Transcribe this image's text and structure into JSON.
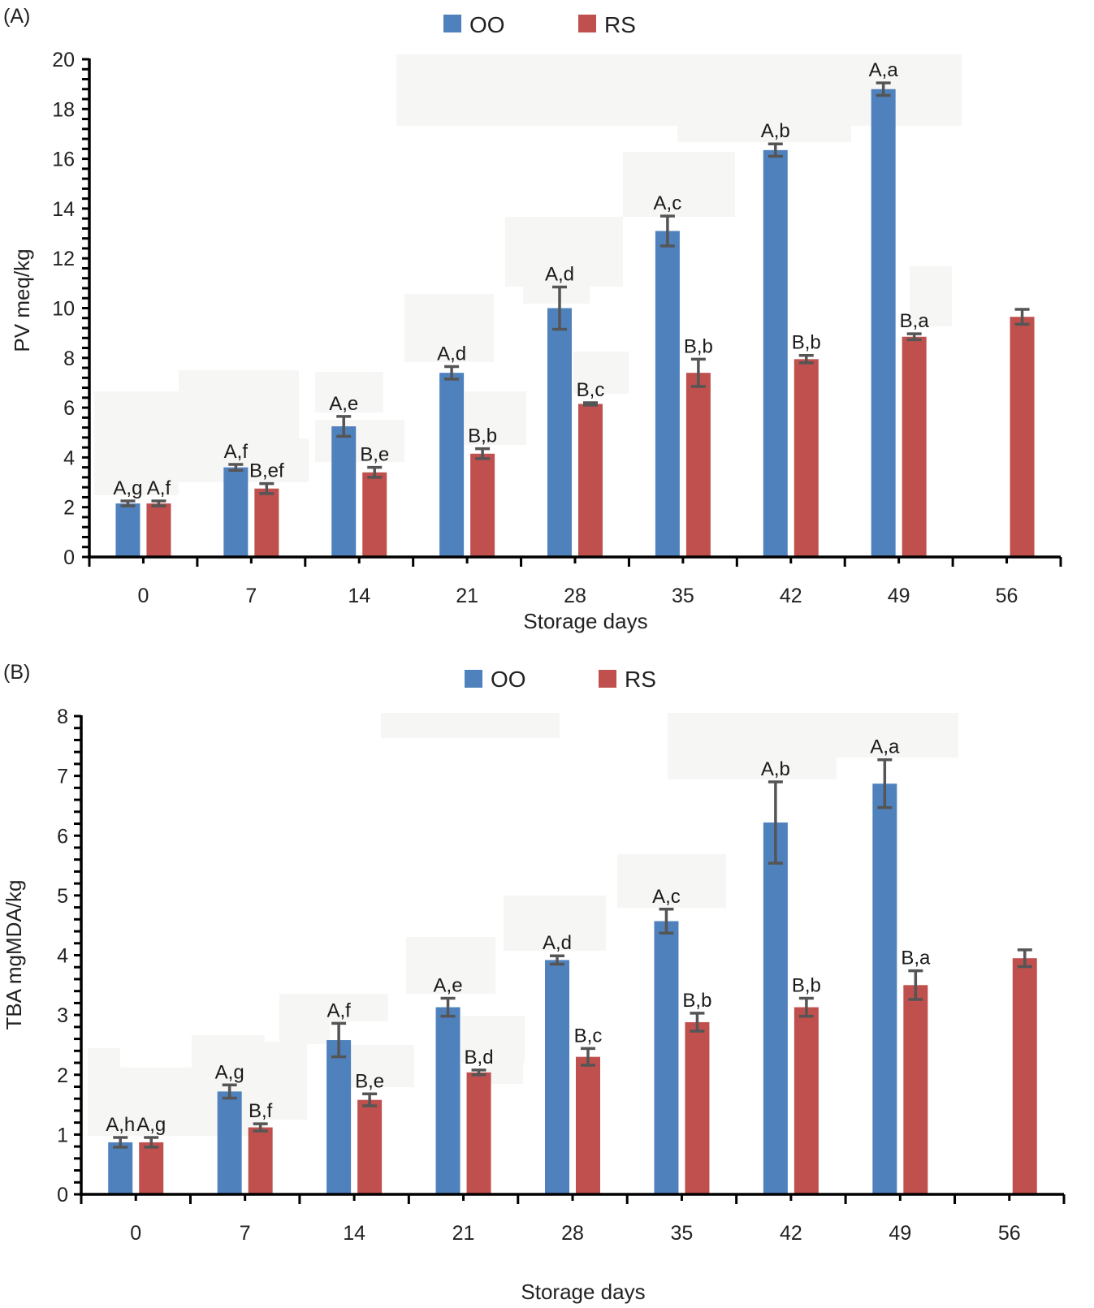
{
  "chart_data": [
    {
      "panel_label": "(A)",
      "type": "bar",
      "title": "",
      "xlabel": "Storage days",
      "ylabel": "PV meq/kg",
      "categories": [
        "0",
        "7",
        "14",
        "21",
        "28",
        "35",
        "42",
        "49",
        "56"
      ],
      "ylim": [
        0,
        20
      ],
      "yticks": [
        "0",
        "2",
        "4",
        "6",
        "8",
        "10",
        "12",
        "14",
        "16",
        "18",
        "20"
      ],
      "ytick_values": [
        0,
        2,
        4,
        6,
        8,
        10,
        12,
        14,
        16,
        18,
        20
      ],
      "legend_position": "top-center",
      "grid": false,
      "series": [
        {
          "name": "OO",
          "color": "#4f81bd",
          "values": [
            2.15,
            3.6,
            5.25,
            7.4,
            10.0,
            13.1,
            16.35,
            18.8,
            null
          ],
          "errors": [
            0.1,
            0.12,
            0.4,
            0.25,
            0.85,
            0.6,
            0.25,
            0.25,
            null
          ],
          "labels": [
            "A,g",
            "A,f",
            "A,e",
            "A,d",
            "A,d",
            "A,c",
            "A,b",
            "A,a",
            ""
          ]
        },
        {
          "name": "RS",
          "color": "#c0504d",
          "values": [
            2.15,
            2.75,
            3.4,
            4.15,
            6.15,
            7.4,
            7.95,
            8.85,
            9.65
          ],
          "errors": [
            0.1,
            0.2,
            0.2,
            0.2,
            0.05,
            0.55,
            0.15,
            0.12,
            0.3
          ],
          "labels": [
            "A,f",
            "B,ef",
            "B,e",
            "B,b",
            "B,c",
            "B,b",
            "B,b",
            "B,a",
            ""
          ]
        }
      ]
    },
    {
      "panel_label": "(B)",
      "type": "bar",
      "title": "",
      "xlabel": "Storage days",
      "ylabel": "TBA mgMDA/kg",
      "categories": [
        "0",
        "7",
        "14",
        "21",
        "28",
        "35",
        "42",
        "49",
        "56"
      ],
      "ylim": [
        0,
        8
      ],
      "yticks": [
        "0",
        "1",
        "2",
        "3",
        "4",
        "5",
        "6",
        "7",
        "8"
      ],
      "ytick_values": [
        0,
        1,
        2,
        3,
        4,
        5,
        6,
        7,
        8
      ],
      "legend_position": "top-center",
      "grid": false,
      "series": [
        {
          "name": "OO",
          "color": "#4f81bd",
          "values": [
            0.87,
            1.72,
            2.58,
            3.13,
            3.92,
            4.57,
            6.22,
            6.87,
            null
          ],
          "errors": [
            0.08,
            0.11,
            0.28,
            0.15,
            0.07,
            0.2,
            0.68,
            0.4,
            null
          ],
          "labels": [
            "A,h",
            "A,g",
            "A,f",
            "A,e",
            "A,d",
            "A,c",
            "A,b",
            "A,a",
            ""
          ]
        },
        {
          "name": "RS",
          "color": "#c0504d",
          "values": [
            0.87,
            1.12,
            1.58,
            2.04,
            2.3,
            2.88,
            3.13,
            3.5,
            3.95
          ],
          "errors": [
            0.08,
            0.06,
            0.1,
            0.04,
            0.14,
            0.15,
            0.15,
            0.24,
            0.14
          ],
          "labels": [
            "A,g",
            "B,f",
            "B,e",
            "B,d",
            "B,c",
            "B,b",
            "B,b",
            "B,a",
            ""
          ]
        }
      ]
    }
  ]
}
